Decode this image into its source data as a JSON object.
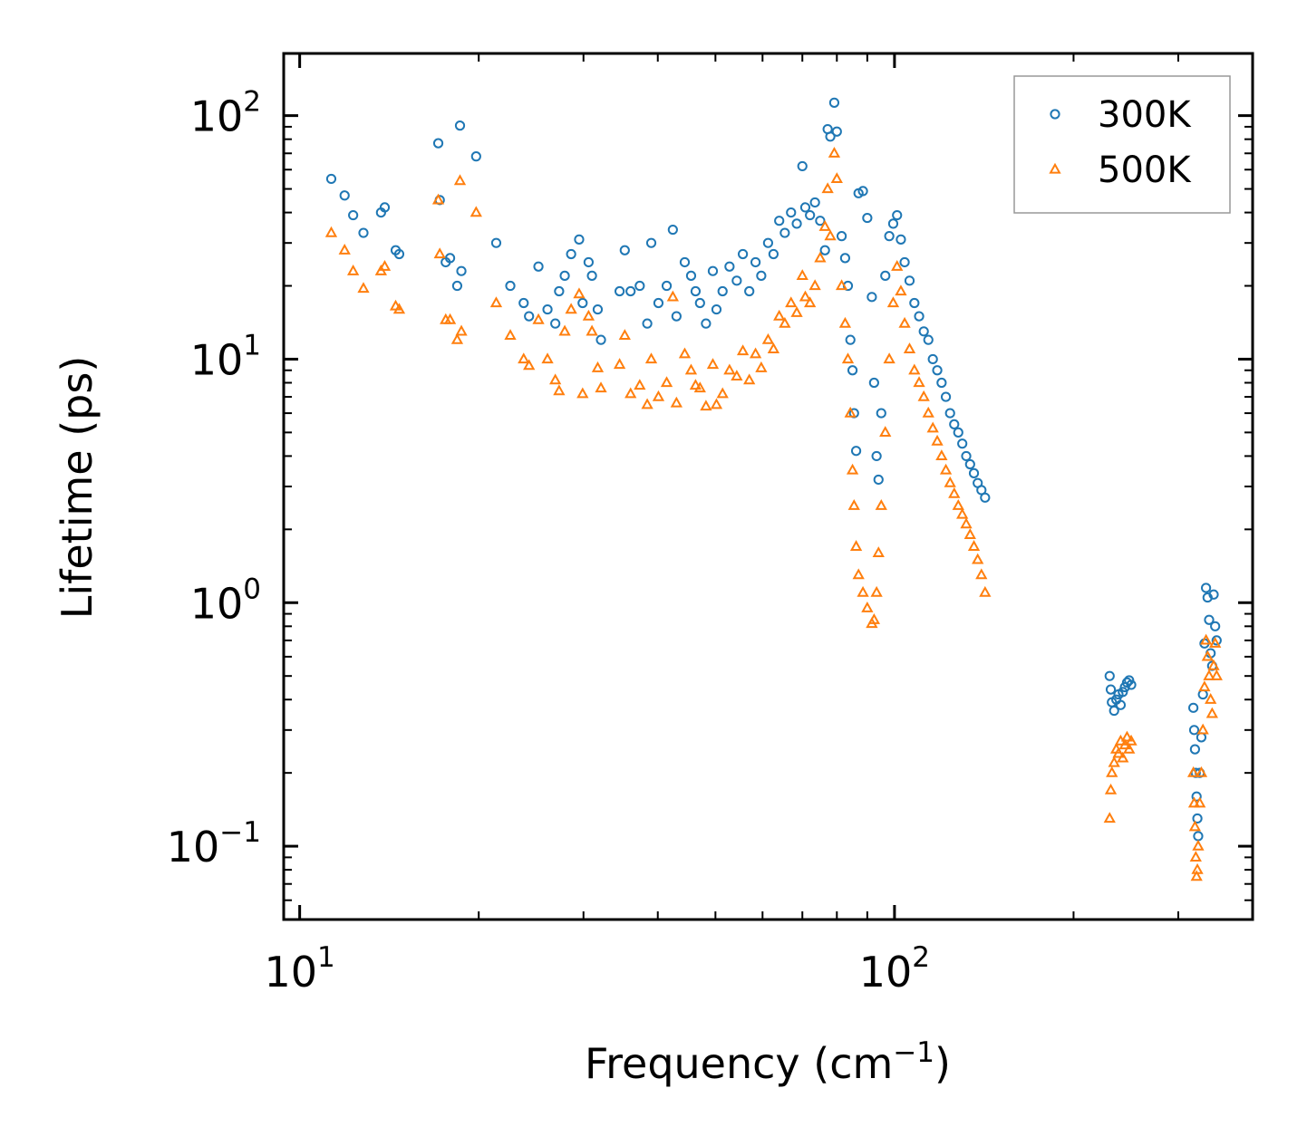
{
  "chart_data": {
    "type": "scatter",
    "title": "",
    "xlabel": "Frequency (cm",
    "xlabel_sup": "−1",
    "xlabel_suffix": ")",
    "ylabel": "Lifetime (ps)",
    "xscale": "log",
    "yscale": "log",
    "xlim": [
      9.4,
      400
    ],
    "ylim": [
      0.05,
      180
    ],
    "grid": false,
    "legend_position": "top-right",
    "x_ticks": [
      {
        "value": 10,
        "base": "10",
        "exp": "1"
      },
      {
        "value": 100,
        "base": "10",
        "exp": "2"
      }
    ],
    "y_ticks": [
      {
        "value": 0.1,
        "base": "10",
        "exp": "−1"
      },
      {
        "value": 1,
        "base": "10",
        "exp": "0"
      },
      {
        "value": 10,
        "base": "10",
        "exp": "1"
      },
      {
        "value": 100,
        "base": "10",
        "exp": "2"
      }
    ],
    "series": [
      {
        "name": "300K",
        "marker": "circle",
        "color": "#1f77b4",
        "points": [
          [
            11.3,
            55
          ],
          [
            11.9,
            47
          ],
          [
            12.3,
            39
          ],
          [
            12.8,
            33
          ],
          [
            13.7,
            40
          ],
          [
            13.9,
            42
          ],
          [
            14.5,
            28
          ],
          [
            14.7,
            27
          ],
          [
            17.1,
            77
          ],
          [
            17.2,
            45
          ],
          [
            17.6,
            25
          ],
          [
            17.9,
            26
          ],
          [
            18.4,
            20
          ],
          [
            18.6,
            91
          ],
          [
            18.7,
            23
          ],
          [
            19.8,
            68
          ],
          [
            21.4,
            30
          ],
          [
            22.6,
            20
          ],
          [
            23.8,
            17
          ],
          [
            24.3,
            15
          ],
          [
            25.2,
            24
          ],
          [
            26.1,
            16
          ],
          [
            26.9,
            14
          ],
          [
            27.3,
            19
          ],
          [
            27.9,
            22
          ],
          [
            28.6,
            27
          ],
          [
            29.5,
            31
          ],
          [
            29.9,
            17
          ],
          [
            30.6,
            25
          ],
          [
            31.0,
            22
          ],
          [
            31.7,
            16
          ],
          [
            32.1,
            12
          ],
          [
            34.5,
            19
          ],
          [
            35.2,
            28
          ],
          [
            36.0,
            19
          ],
          [
            37.3,
            20
          ],
          [
            38.4,
            14
          ],
          [
            39.0,
            30
          ],
          [
            40.1,
            17
          ],
          [
            41.4,
            20
          ],
          [
            42.4,
            34
          ],
          [
            43.0,
            15
          ],
          [
            44.4,
            25
          ],
          [
            45.5,
            22
          ],
          [
            46.3,
            19
          ],
          [
            47.1,
            17
          ],
          [
            48.2,
            14
          ],
          [
            49.5,
            23
          ],
          [
            50.2,
            16
          ],
          [
            51.4,
            19
          ],
          [
            52.8,
            24
          ],
          [
            54.3,
            21
          ],
          [
            55.6,
            27
          ],
          [
            57.0,
            19
          ],
          [
            58.4,
            25
          ],
          [
            59.7,
            22
          ],
          [
            61.3,
            30
          ],
          [
            62.6,
            27
          ],
          [
            64.0,
            37
          ],
          [
            65.4,
            33
          ],
          [
            67.0,
            40
          ],
          [
            68.5,
            36
          ],
          [
            70.0,
            62
          ],
          [
            70.8,
            42
          ],
          [
            72.1,
            39
          ],
          [
            73.5,
            44
          ],
          [
            75.0,
            37
          ],
          [
            76.4,
            28
          ],
          [
            77.2,
            88
          ],
          [
            78.0,
            82
          ],
          [
            79.2,
            113
          ],
          [
            80.0,
            86
          ],
          [
            81.5,
            32
          ],
          [
            82.6,
            26
          ],
          [
            83.5,
            20
          ],
          [
            84.3,
            12
          ],
          [
            85.0,
            9
          ],
          [
            85.5,
            6
          ],
          [
            86.2,
            4.2
          ],
          [
            87.0,
            48
          ],
          [
            88.5,
            49
          ],
          [
            90.0,
            38
          ],
          [
            91.6,
            18
          ],
          [
            92.4,
            8
          ],
          [
            93.3,
            4
          ],
          [
            94.0,
            3.2
          ],
          [
            95.0,
            6
          ],
          [
            96.5,
            22
          ],
          [
            98.0,
            32
          ],
          [
            99.5,
            36
          ],
          [
            101.0,
            39
          ],
          [
            102.5,
            31
          ],
          [
            104.0,
            25
          ],
          [
            106.0,
            21
          ],
          [
            108.0,
            17
          ],
          [
            110.0,
            15
          ],
          [
            112.0,
            13
          ],
          [
            114.0,
            12
          ],
          [
            116.0,
            10
          ],
          [
            118.0,
            9
          ],
          [
            120.0,
            8
          ],
          [
            122.0,
            7
          ],
          [
            124.0,
            6
          ],
          [
            126.0,
            5.4
          ],
          [
            128.0,
            5
          ],
          [
            130.0,
            4.5
          ],
          [
            132.0,
            4
          ],
          [
            134.0,
            3.7
          ],
          [
            136.0,
            3.4
          ],
          [
            138.0,
            3.1
          ],
          [
            140.0,
            2.9
          ],
          [
            142.0,
            2.7
          ],
          [
            230.0,
            0.5
          ],
          [
            231.0,
            0.44
          ],
          [
            232.0,
            0.39
          ],
          [
            234.0,
            0.36
          ],
          [
            236.0,
            0.4
          ],
          [
            238.0,
            0.42
          ],
          [
            240.0,
            0.38
          ],
          [
            242.0,
            0.43
          ],
          [
            244.0,
            0.45
          ],
          [
            246.0,
            0.47
          ],
          [
            248.0,
            0.48
          ],
          [
            250.0,
            0.46
          ],
          [
            318.0,
            0.37
          ],
          [
            319.0,
            0.3
          ],
          [
            320.0,
            0.25
          ],
          [
            321.0,
            0.2
          ],
          [
            322.0,
            0.16
          ],
          [
            323.0,
            0.13
          ],
          [
            324.0,
            0.11
          ],
          [
            326.0,
            0.2
          ],
          [
            328.0,
            0.28
          ],
          [
            330.0,
            0.42
          ],
          [
            332.0,
            0.68
          ],
          [
            334.0,
            1.15
          ],
          [
            336.0,
            1.05
          ],
          [
            338.0,
            0.85
          ],
          [
            340.0,
            0.62
          ],
          [
            342.0,
            0.55
          ],
          [
            344.0,
            1.08
          ],
          [
            346.0,
            0.8
          ],
          [
            348.0,
            0.7
          ]
        ]
      },
      {
        "name": "500K",
        "marker": "triangle",
        "color": "#ff7f0e",
        "points": [
          [
            11.3,
            33
          ],
          [
            11.9,
            28
          ],
          [
            12.3,
            23
          ],
          [
            12.8,
            19.5
          ],
          [
            13.7,
            23
          ],
          [
            13.9,
            24
          ],
          [
            14.5,
            16.5
          ],
          [
            14.7,
            16
          ],
          [
            17.1,
            45
          ],
          [
            17.2,
            27
          ],
          [
            17.6,
            14.5
          ],
          [
            17.9,
            14.5
          ],
          [
            18.4,
            12
          ],
          [
            18.6,
            54
          ],
          [
            18.7,
            13
          ],
          [
            19.8,
            40
          ],
          [
            21.4,
            17
          ],
          [
            22.6,
            12.5
          ],
          [
            23.8,
            10
          ],
          [
            24.3,
            9.4
          ],
          [
            25.2,
            14.5
          ],
          [
            26.1,
            10
          ],
          [
            26.9,
            8.2
          ],
          [
            27.3,
            7.4
          ],
          [
            27.9,
            13
          ],
          [
            28.6,
            16
          ],
          [
            29.5,
            18.5
          ],
          [
            29.9,
            7.2
          ],
          [
            30.6,
            15
          ],
          [
            31.0,
            13
          ],
          [
            31.7,
            9.2
          ],
          [
            32.1,
            7.6
          ],
          [
            34.5,
            9.5
          ],
          [
            35.2,
            12.5
          ],
          [
            36.0,
            7.2
          ],
          [
            37.3,
            7.8
          ],
          [
            38.4,
            6.5
          ],
          [
            39.0,
            10
          ],
          [
            40.1,
            7
          ],
          [
            41.4,
            8
          ],
          [
            42.4,
            18
          ],
          [
            43.0,
            6.6
          ],
          [
            44.4,
            10.5
          ],
          [
            45.5,
            9
          ],
          [
            46.3,
            7.8
          ],
          [
            47.1,
            7.6
          ],
          [
            48.2,
            6.4
          ],
          [
            49.5,
            9.5
          ],
          [
            50.2,
            6.5
          ],
          [
            51.4,
            7.2
          ],
          [
            52.8,
            9
          ],
          [
            54.3,
            8.5
          ],
          [
            55.6,
            10.8
          ],
          [
            57.0,
            8.2
          ],
          [
            58.4,
            10.5
          ],
          [
            59.7,
            9.2
          ],
          [
            61.3,
            12
          ],
          [
            62.6,
            11
          ],
          [
            64.0,
            15
          ],
          [
            65.4,
            14
          ],
          [
            67.0,
            17
          ],
          [
            68.5,
            15.5
          ],
          [
            70.0,
            22
          ],
          [
            70.8,
            18
          ],
          [
            72.1,
            17
          ],
          [
            73.5,
            20
          ],
          [
            75.0,
            26
          ],
          [
            76.4,
            35
          ],
          [
            77.2,
            50
          ],
          [
            78.0,
            32
          ],
          [
            79.2,
            70
          ],
          [
            80.0,
            55
          ],
          [
            81.5,
            20
          ],
          [
            82.6,
            14
          ],
          [
            83.5,
            10
          ],
          [
            84.3,
            6
          ],
          [
            85.0,
            3.5
          ],
          [
            85.5,
            2.5
          ],
          [
            86.2,
            1.7
          ],
          [
            87.0,
            1.3
          ],
          [
            88.5,
            1.1
          ],
          [
            90.0,
            0.95
          ],
          [
            91.6,
            0.82
          ],
          [
            92.4,
            0.85
          ],
          [
            93.3,
            1.1
          ],
          [
            94.0,
            1.6
          ],
          [
            95.0,
            2.5
          ],
          [
            96.5,
            5
          ],
          [
            98.0,
            10
          ],
          [
            99.5,
            17
          ],
          [
            101.0,
            24
          ],
          [
            102.5,
            19
          ],
          [
            104.0,
            14
          ],
          [
            106.0,
            11
          ],
          [
            108.0,
            9
          ],
          [
            110.0,
            8
          ],
          [
            112.0,
            7
          ],
          [
            114.0,
            6
          ],
          [
            116.0,
            5.2
          ],
          [
            118.0,
            4.6
          ],
          [
            120.0,
            4
          ],
          [
            122.0,
            3.5
          ],
          [
            124.0,
            3.1
          ],
          [
            126.0,
            2.8
          ],
          [
            128.0,
            2.5
          ],
          [
            130.0,
            2.3
          ],
          [
            132.0,
            2.1
          ],
          [
            134.0,
            1.9
          ],
          [
            136.0,
            1.7
          ],
          [
            138.0,
            1.5
          ],
          [
            140.0,
            1.3
          ],
          [
            142.0,
            1.1
          ],
          [
            230.0,
            0.13
          ],
          [
            231.0,
            0.17
          ],
          [
            232.0,
            0.2
          ],
          [
            234.0,
            0.22
          ],
          [
            236.0,
            0.25
          ],
          [
            238.0,
            0.24
          ],
          [
            240.0,
            0.27
          ],
          [
            242.0,
            0.23
          ],
          [
            244.0,
            0.26
          ],
          [
            246.0,
            0.28
          ],
          [
            248.0,
            0.25
          ],
          [
            250.0,
            0.27
          ],
          [
            318.0,
            0.2
          ],
          [
            319.0,
            0.15
          ],
          [
            320.0,
            0.12
          ],
          [
            321.0,
            0.09
          ],
          [
            322.0,
            0.075
          ],
          [
            323.0,
            0.08
          ],
          [
            324.0,
            0.1
          ],
          [
            326.0,
            0.15
          ],
          [
            328.0,
            0.2
          ],
          [
            330.0,
            0.3
          ],
          [
            332.0,
            0.45
          ],
          [
            334.0,
            0.7
          ],
          [
            336.0,
            0.6
          ],
          [
            338.0,
            0.5
          ],
          [
            340.0,
            0.4
          ],
          [
            342.0,
            0.35
          ],
          [
            344.0,
            0.55
          ],
          [
            346.0,
            0.68
          ],
          [
            348.0,
            0.5
          ]
        ]
      }
    ]
  }
}
